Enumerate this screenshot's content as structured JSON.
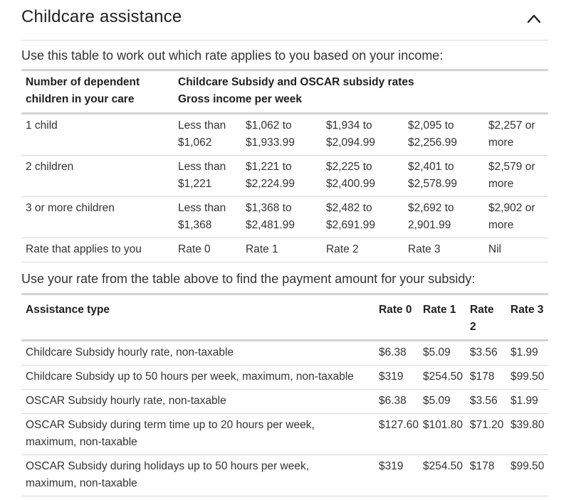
{
  "section": {
    "title": "Childcare assistance",
    "toggle_icon": "chevron-up-icon"
  },
  "table1": {
    "intro": "Use this table to work out which rate applies to you based on your income:",
    "header_col1": [
      "Number of dependent",
      "children in your care"
    ],
    "header_col2": [
      "Childcare Subsidy and OSCAR subsidy rates",
      "Gross income per week"
    ],
    "rows": [
      {
        "label": "1 child",
        "cells": [
          [
            "Less than",
            "$1,062"
          ],
          [
            "$1,062 to",
            "$1,933.99"
          ],
          [
            "$1,934 to",
            "$2,094.99"
          ],
          [
            "$2,095 to",
            "$2,256.99"
          ],
          [
            "$2,257 or",
            "more"
          ]
        ]
      },
      {
        "label": "2 children",
        "cells": [
          [
            "Less than",
            "$1,221"
          ],
          [
            "$1,221 to",
            "$2,224.99"
          ],
          [
            "$2,225 to",
            "$2,400.99"
          ],
          [
            "$2,401 to",
            "$2,578.99"
          ],
          [
            "$2,579 or",
            "more"
          ]
        ]
      },
      {
        "label": "3 or more children",
        "cells": [
          [
            "Less than",
            "$1,368"
          ],
          [
            "$1,368 to",
            "$2,481.99"
          ],
          [
            "$2,482 to",
            "$2,691.99"
          ],
          [
            "$2,692 to",
            "2,901.99"
          ],
          [
            "$2,902 or",
            "more"
          ]
        ]
      }
    ],
    "rate_row": {
      "label": "Rate that applies to you",
      "cells": [
        "Rate 0",
        "Rate 1",
        "Rate 2",
        "Rate 3",
        "Nil"
      ]
    }
  },
  "table2": {
    "intro": "Use your rate from the table above to find the payment amount for your subsidy:",
    "headers": [
      "Assistance type",
      "Rate 0",
      "Rate 1",
      [
        "Rate",
        "2"
      ],
      "Rate 3"
    ],
    "rows": [
      {
        "label": [
          "Childcare Subsidy hourly rate, non-taxable"
        ],
        "values": [
          "$6.38",
          "$5.09",
          "$3.56",
          "$1.99"
        ]
      },
      {
        "label": [
          "Childcare Subsidy up to 50 hours per week, maximum, non-taxable"
        ],
        "values": [
          "$319",
          "$254.50",
          "$178",
          "$99.50"
        ]
      },
      {
        "label": [
          "OSCAR Subsidy hourly rate, non-taxable"
        ],
        "values": [
          "$6.38",
          "$5.09",
          "$3.56",
          "$1.99"
        ]
      },
      {
        "label": [
          "OSCAR Subsidy during term time up to 20 hours per week,",
          "maximum, non-taxable"
        ],
        "values": [
          "$127.60",
          "$101.80",
          "$71.20",
          "$39.80"
        ]
      },
      {
        "label": [
          "OSCAR Subsidy during holidays up to 50 hours per week,",
          "maximum, non-taxable"
        ],
        "values": [
          "$319",
          "$254.50",
          "$178",
          "$99.50"
        ]
      }
    ]
  }
}
